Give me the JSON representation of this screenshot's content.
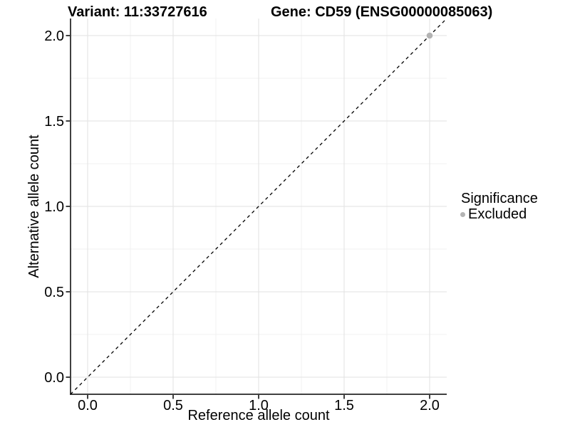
{
  "titles": {
    "variant": "Variant: 11:33727616",
    "gene": "Gene: CD59 (ENSG00000085063)"
  },
  "chart_data": {
    "type": "scatter",
    "xlabel": "Reference allele count",
    "ylabel": "Alternative allele count",
    "xlim": [
      -0.1,
      2.1
    ],
    "ylim": [
      -0.1,
      2.1
    ],
    "xticks": [
      0.0,
      0.5,
      1.0,
      1.5,
      2.0
    ],
    "yticks": [
      0.0,
      0.5,
      1.0,
      1.5,
      2.0
    ],
    "x_minor_breaks": [
      0.25,
      0.75,
      1.25,
      1.75
    ],
    "y_minor_breaks": [
      0.25,
      0.75,
      1.25,
      1.75
    ],
    "grid": true,
    "identity_line": {
      "from": [
        -0.1,
        -0.1
      ],
      "to": [
        2.1,
        2.1
      ],
      "style": "dashed",
      "color": "#000000"
    },
    "points": [
      {
        "x": 2.0,
        "y": 2.0,
        "series": "Excluded",
        "color": "#b3b3b3"
      }
    ],
    "legend": {
      "position": "right",
      "title": "Significance",
      "entries": [
        {
          "label": "Excluded",
          "color": "#b3b3b3",
          "marker": "circle"
        }
      ]
    }
  },
  "colors": {
    "background": "#ffffff",
    "major_grid": "#e2e2e2",
    "minor_grid": "#f0f0f0",
    "axis_line": "#000000",
    "tick_label": "#000000",
    "point": "#b3b3b3"
  }
}
